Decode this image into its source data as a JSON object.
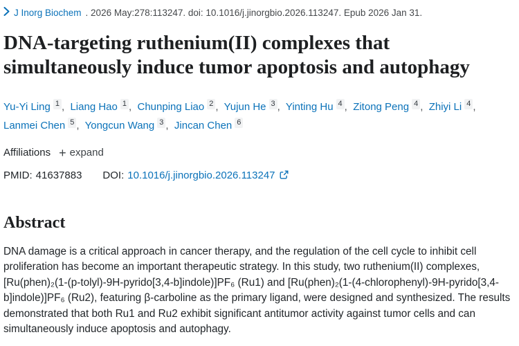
{
  "colors": {
    "link_blue": "#0b72b9",
    "body_text": "#212529",
    "title_text": "#1e2022",
    "citation_text": "#45484b",
    "sup_badge_bg": "#f1f2f3",
    "background": "#ffffff"
  },
  "citation": {
    "journal": "J Inorg Biochem",
    "meta": ". 2026 May:278:113247. doi: 10.1016/j.jinorgbio.2026.113247. Epub 2026 Jan 31."
  },
  "title": "DNA-targeting ruthenium(II) complexes that simultaneously induce tumor apoptosis and autophagy",
  "authors": [
    {
      "name": "Yu-Yi Ling",
      "sup": "1"
    },
    {
      "name": "Liang Hao",
      "sup": "1"
    },
    {
      "name": "Chunping Liao",
      "sup": "2"
    },
    {
      "name": "Yujun He",
      "sup": "3"
    },
    {
      "name": "Yinting Hu",
      "sup": "4"
    },
    {
      "name": "Zitong Peng",
      "sup": "4"
    },
    {
      "name": "Zhiyi Li",
      "sup": "4"
    },
    {
      "name": "Lanmei Chen",
      "sup": "5"
    },
    {
      "name": "Yongcun Wang",
      "sup": "3"
    },
    {
      "name": "Jincan Chen",
      "sup": "6"
    }
  ],
  "affiliations": {
    "label": "Affiliations",
    "plus_icon": "+",
    "expand_label": "expand"
  },
  "identifiers": {
    "pmid_label": "PMID:",
    "pmid_value": "41637883",
    "doi_label": "DOI:",
    "doi_value": "10.1016/j.jinorgbio.2026.113247",
    "external_link_icon": "external-link"
  },
  "abstract": {
    "heading": "Abstract",
    "text": "DNA damage is a critical approach in cancer therapy, and the regulation of the cell cycle to inhibit cell proliferation has become an important therapeutic strategy. In this study, two ruthenium(II) complexes, [Ru(phen)₂(1-(p-tolyl)-9H-pyrido[3,4-b]indole)]PF₆ (Ru1) and [Ru(phen)₂(1-(4-chlorophenyl)-9H-pyrido[3,4-b]indole)]PF₆ (Ru2), featuring β-carboline as the primary ligand, were designed and synthesized. The results demonstrated that both Ru1 and Ru2 exhibit significant",
    "clipped_line": " antitumor activity against tumor cells and can simultaneously induce apoptosis and autophagy."
  }
}
